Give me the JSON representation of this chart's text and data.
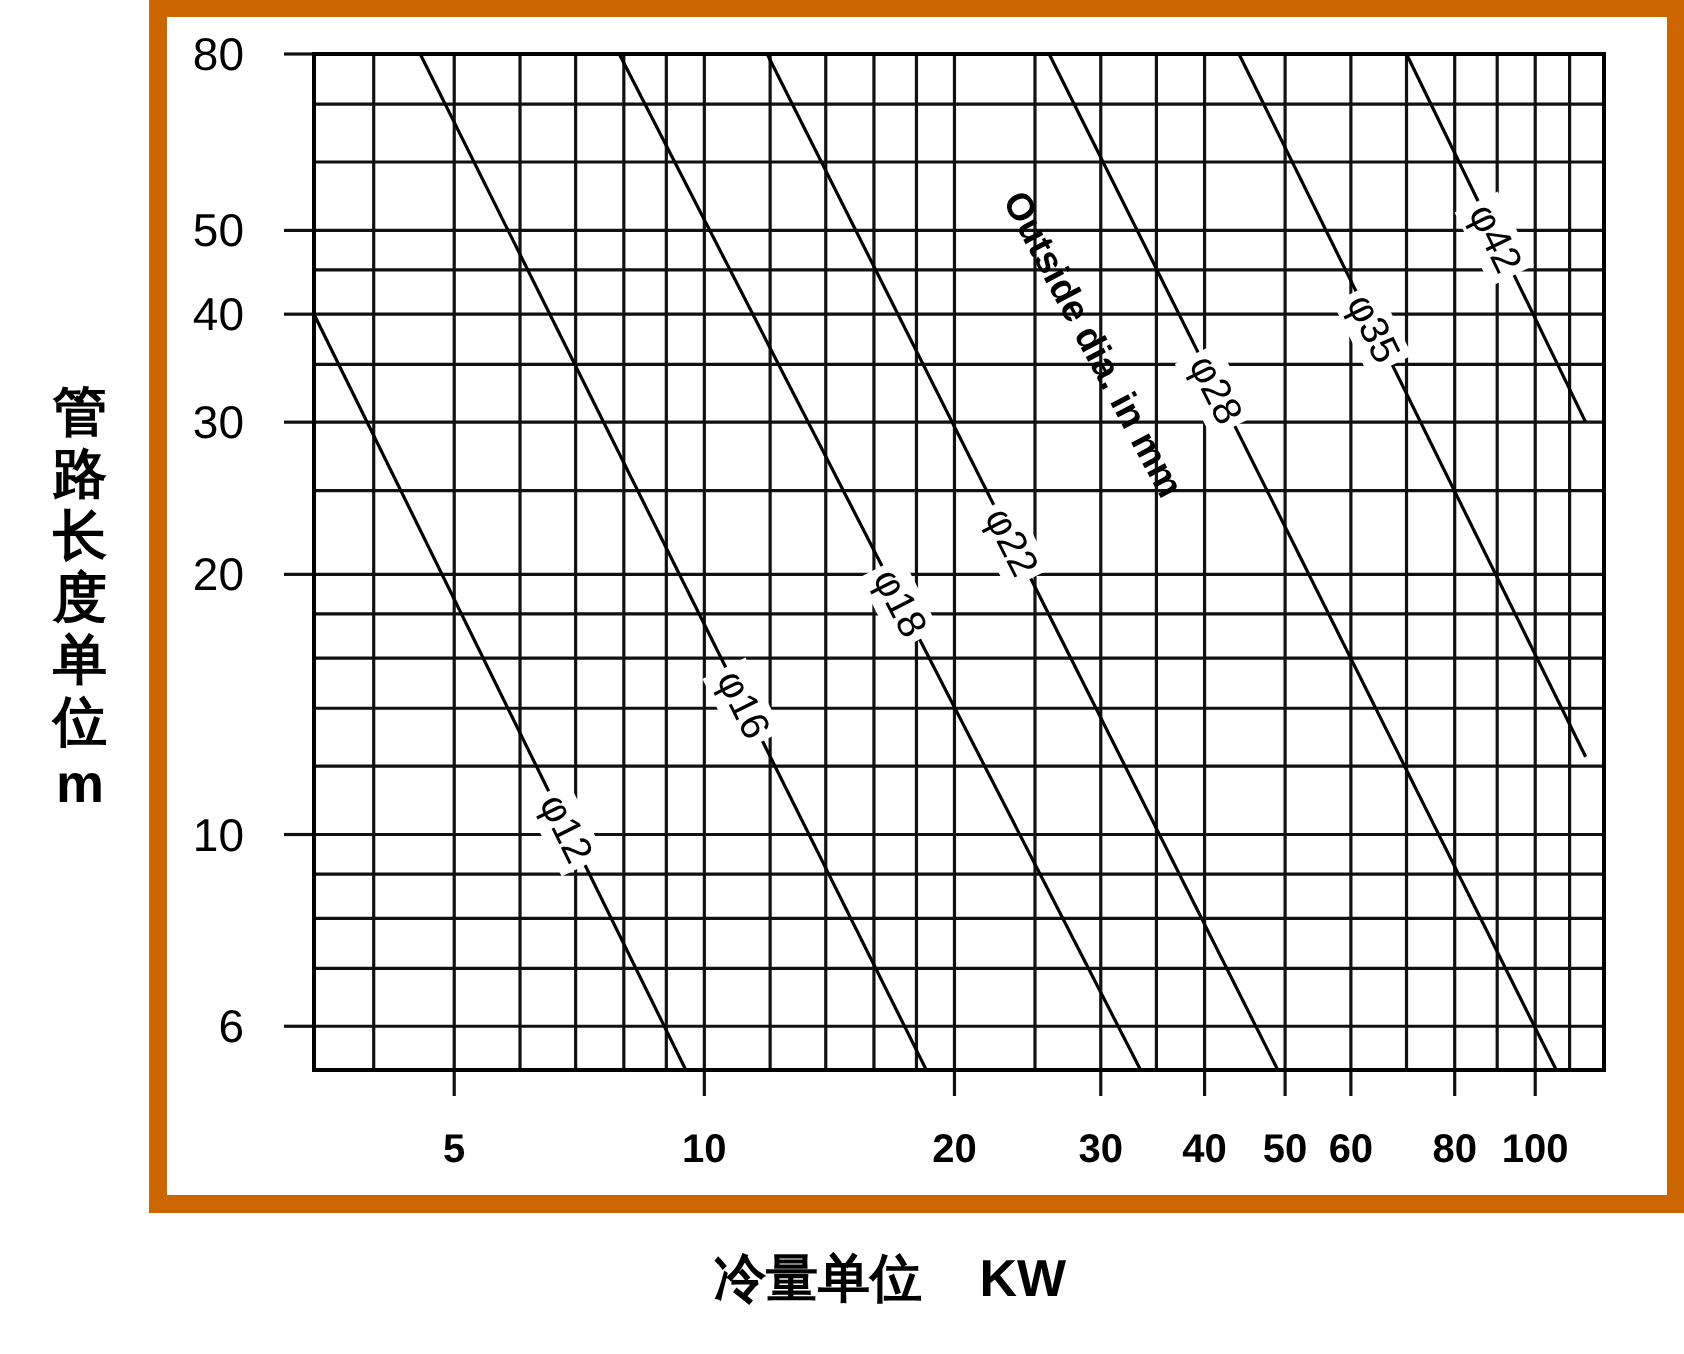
{
  "chart_data": {
    "type": "line",
    "xlabel": "冷量单位    KW",
    "ylabel": "管路长度单位m",
    "log": "xy",
    "xlim": [
      3.39,
      121
    ],
    "ylim": [
      5.34,
      80
    ],
    "xticks": [
      {
        "value": 4,
        "label": null
      },
      5,
      {
        "value": 6,
        "label": null
      },
      {
        "value": 7,
        "label": null
      },
      {
        "value": 8,
        "label": null
      },
      {
        "value": 9,
        "label": null
      },
      10,
      {
        "value": 12,
        "label": null
      },
      {
        "value": 14,
        "label": null
      },
      {
        "value": 16,
        "label": null
      },
      {
        "value": 18,
        "label": null
      },
      20,
      {
        "value": 25,
        "label": null
      },
      30,
      {
        "value": 35,
        "label": null
      },
      40,
      50,
      60,
      {
        "value": 70,
        "label": null
      },
      80,
      {
        "value": 90,
        "label": null
      },
      100,
      {
        "value": 110,
        "label": null
      }
    ],
    "yticks": [
      6,
      {
        "value": 7,
        "label": null
      },
      {
        "value": 8,
        "label": null
      },
      {
        "value": 9,
        "label": null
      },
      10,
      {
        "value": 12,
        "label": null
      },
      {
        "value": 14,
        "label": null
      },
      {
        "value": 16,
        "label": null
      },
      {
        "value": 18,
        "label": null
      },
      20,
      {
        "value": 25,
        "label": null
      },
      30,
      {
        "value": 35,
        "label": null
      },
      40,
      {
        "value": 45,
        "label": null
      },
      50,
      {
        "value": 60,
        "label": null
      },
      {
        "value": 70,
        "label": null
      },
      80
    ],
    "grid": true,
    "series": [
      {
        "name": "φ12",
        "color": "#000000",
        "x": [
          3.39,
          9.5
        ],
        "values": [
          40,
          5.34
        ]
      },
      {
        "name": "φ16",
        "color": "#000000",
        "x": [
          4.55,
          18.5
        ],
        "values": [
          80,
          5.34
        ]
      },
      {
        "name": "φ18",
        "color": "#000000",
        "x": [
          7.9,
          33.5
        ],
        "values": [
          80,
          5.34
        ]
      },
      {
        "name": "φ22",
        "color": "#000000",
        "x": [
          11.9,
          49
        ],
        "values": [
          80,
          5.34
        ]
      },
      {
        "name": "φ28",
        "color": "#000000",
        "x": [
          26,
          106
        ],
        "values": [
          80,
          5.34
        ]
      },
      {
        "name": "φ35",
        "color": "#000000",
        "x": [
          44,
          115
        ],
        "values": [
          80,
          12.3
        ]
      },
      {
        "name": "φ42",
        "color": "#000000",
        "x": [
          70,
          115
        ],
        "values": [
          80,
          30
        ]
      }
    ],
    "annotations": [
      "Outside dia. in mm"
    ]
  }
}
